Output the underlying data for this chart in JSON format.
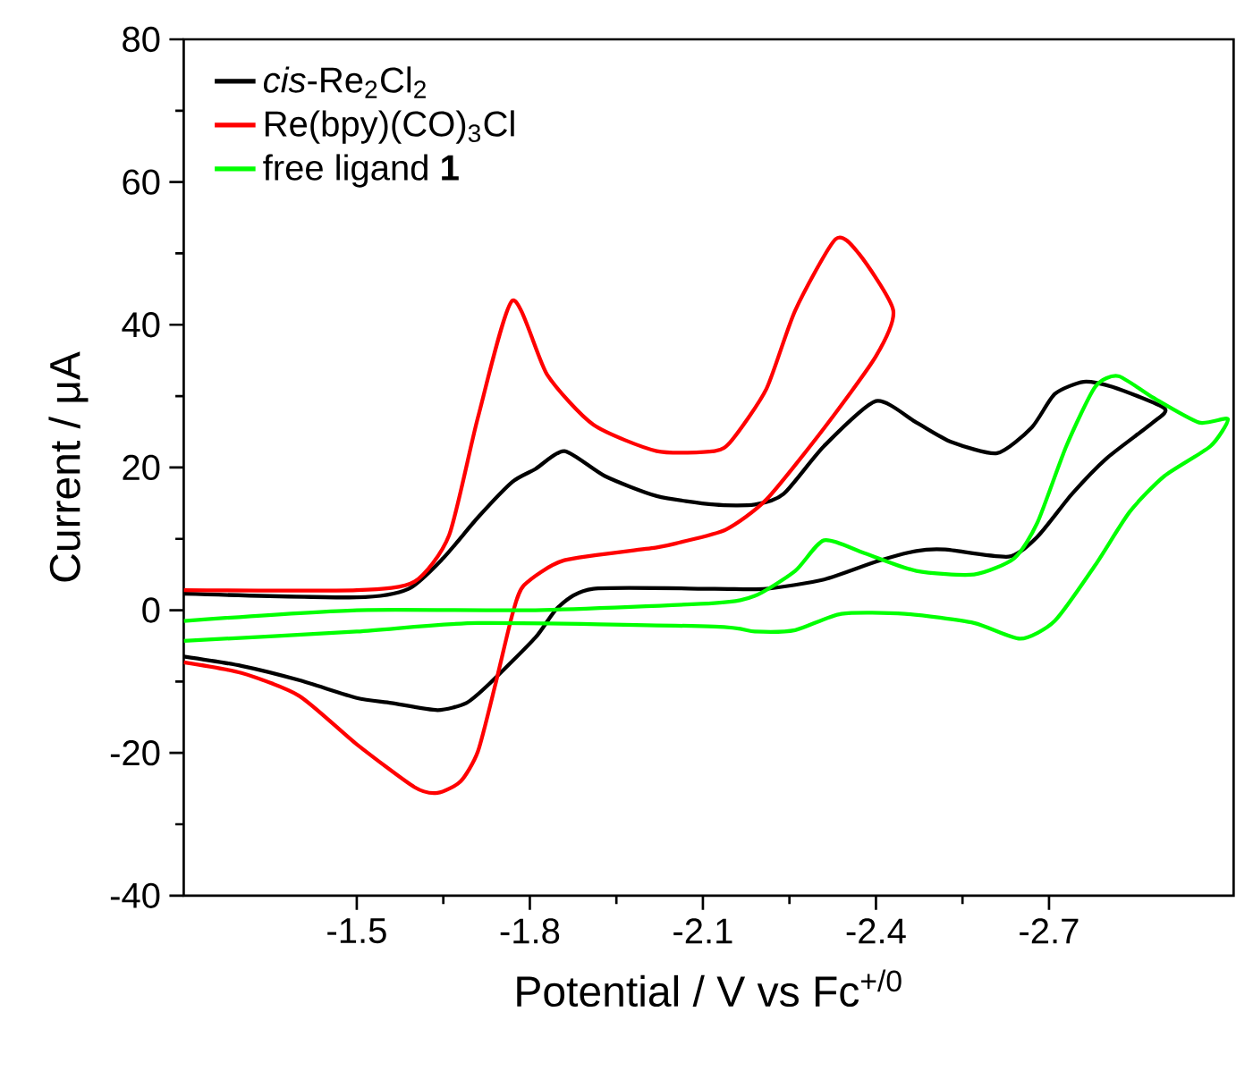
{
  "chart_data": {
    "type": "line",
    "xlabel": "Potential  /  V vs Fc$^{+/0}$",
    "ylabel": "Current  /  μA",
    "xlim": [
      -1.2,
      -3.02
    ],
    "ylim": [
      -40,
      80
    ],
    "xticks": [
      -1.5,
      -1.8,
      -2.1,
      -2.4,
      -2.7
    ],
    "yticks": [
      -40,
      -20,
      0,
      20,
      40,
      60,
      80
    ],
    "legend": "top left",
    "grid": false,
    "marker": "none",
    "line_style": "solid",
    "series": [
      {
        "name": "*cis*-Re$_{2}$Cl$_{2}$",
        "color": "#000000",
        "x": [
          -1.2,
          -1.5,
          -1.59,
          -1.65,
          -1.71,
          -1.77,
          -1.81,
          -1.86,
          -1.93,
          -2.02,
          -2.12,
          -2.19,
          -2.24,
          -2.31,
          -2.4,
          -2.47,
          -2.53,
          -2.61,
          -2.67,
          -2.71,
          -2.76,
          -2.81,
          -2.9,
          -2.88,
          -2.8,
          -2.74,
          -2.68,
          -2.63,
          -2.52,
          -2.47,
          -2.4,
          -2.31,
          -2.21,
          -2.12,
          -1.91,
          -1.85,
          -1.81,
          -1.73,
          -1.69,
          -1.64,
          -1.56,
          -1.5,
          -1.4,
          -1.3,
          -1.2
        ],
        "values": [
          2.3,
          1.8,
          3,
          7.3,
          13,
          18,
          19.8,
          22.3,
          18.8,
          16,
          14.8,
          14.8,
          16.3,
          23,
          29.3,
          26.3,
          23.6,
          22,
          25.6,
          30.3,
          32,
          31.3,
          28.3,
          26.3,
          21.3,
          16.3,
          10.3,
          7.5,
          8.5,
          8.3,
          6.8,
          4.3,
          3,
          3,
          3,
          0.5,
          -3.8,
          -10.3,
          -13,
          -14,
          -13,
          -12.3,
          -9.8,
          -7.8,
          -6.5
        ]
      },
      {
        "name": "Re(bpy)(CO)$_{3}$Cl",
        "color": "#ff0000",
        "x": [
          -1.2,
          -1.5,
          -1.6,
          -1.66,
          -1.71,
          -1.77,
          -1.83,
          -1.91,
          -2.02,
          -2.12,
          -2.15,
          -2.21,
          -2.26,
          -2.33,
          -2.37,
          -2.43,
          -2.4,
          -2.31,
          -2.21,
          -2.14,
          -2.06,
          -2.02,
          -1.86,
          -1.79,
          -1.77,
          -1.74,
          -1.71,
          -1.68,
          -1.64,
          -1.6,
          -1.5,
          -1.4,
          -1.3,
          -1.2
        ],
        "values": [
          2.8,
          2.8,
          4,
          10.5,
          27,
          43.4,
          33,
          26,
          22.3,
          22.3,
          23.8,
          31,
          42,
          52,
          50,
          42,
          35.6,
          25.5,
          15.5,
          11.3,
          9.5,
          8.8,
          7,
          3.5,
          -0.5,
          -10.5,
          -19.8,
          -24,
          -25.6,
          -24.8,
          -18.8,
          -12,
          -8.8,
          -7.3
        ]
      },
      {
        "name": "free ligand **1**",
        "color": "#00ff00",
        "x": [
          -1.2,
          -1.5,
          -1.81,
          -2.12,
          -2.19,
          -2.26,
          -2.31,
          -2.38,
          -2.47,
          -2.57,
          -2.64,
          -2.68,
          -2.73,
          -2.78,
          -2.82,
          -2.88,
          -2.96,
          -3.01,
          -2.98,
          -2.9,
          -2.84,
          -2.78,
          -2.71,
          -2.65,
          -2.57,
          -2.45,
          -2.34,
          -2.26,
          -2.19,
          -2.12,
          -1.71,
          -1.5,
          -1.2
        ],
        "values": [
          -1.5,
          0,
          0,
          1,
          2,
          5.5,
          9.8,
          8,
          5.5,
          5,
          7.3,
          12.3,
          23,
          31.3,
          32.8,
          29.8,
          26.3,
          26.8,
          23,
          18.8,
          13.8,
          6.3,
          -1.5,
          -4,
          -1.8,
          -0.5,
          -0.5,
          -2.8,
          -3,
          -2.3,
          -1.8,
          -3,
          -4.3
        ]
      }
    ]
  }
}
